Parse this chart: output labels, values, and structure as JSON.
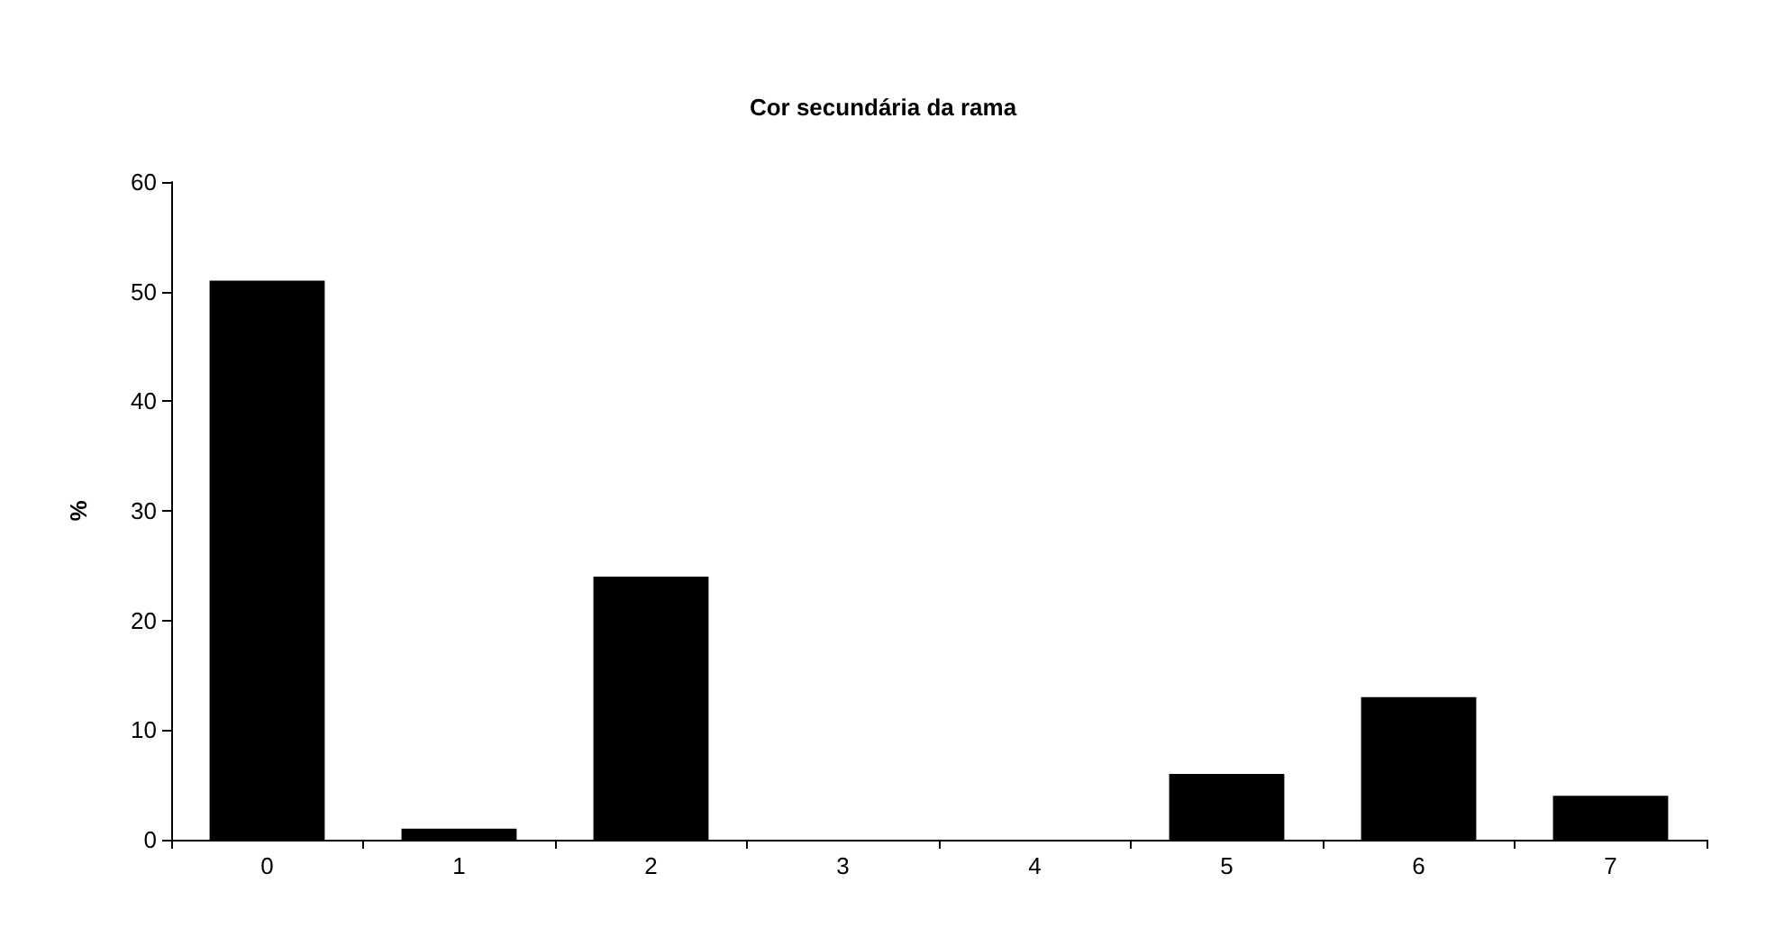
{
  "chart_data": {
    "type": "bar",
    "title": "Cor secundária da rama",
    "ylabel": "%",
    "categories": [
      "0",
      "1",
      "2",
      "3",
      "4",
      "5",
      "6",
      "7"
    ],
    "values": [
      51,
      1,
      24,
      0,
      0,
      6,
      13,
      4
    ],
    "color": "#000000",
    "ylim": [
      0,
      60
    ],
    "yticks": [
      0,
      10,
      20,
      30,
      40,
      50,
      60
    ],
    "grid": false
  }
}
